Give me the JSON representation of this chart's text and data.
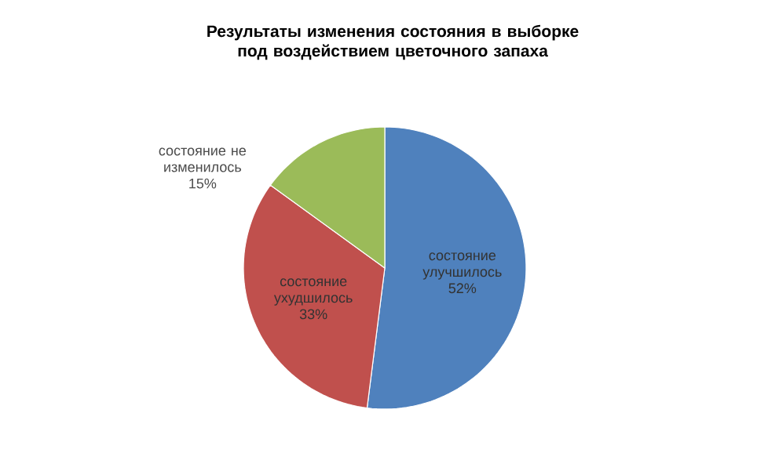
{
  "chart_data": {
    "type": "pie",
    "title": "Результаты изменения состояния в выборке под воздействием цветочного запаха",
    "categories": [
      "состояние улучшилось",
      "состояние ухудшилось",
      "состояние не изменилось"
    ],
    "values": [
      52,
      33,
      15
    ],
    "value_labels": [
      "52%",
      "33%",
      "15%"
    ],
    "colors": [
      "#4f81bd",
      "#c0504d",
      "#9bbb59"
    ]
  }
}
